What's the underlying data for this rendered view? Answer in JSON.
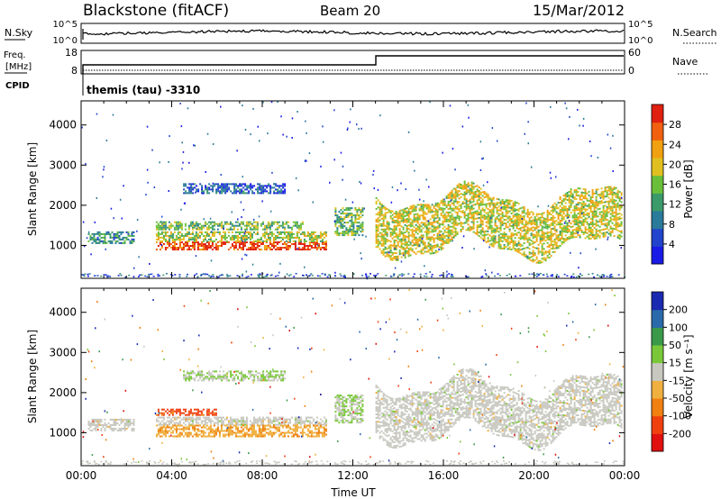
{
  "header": {
    "station": "Blackstone (fitACF)",
    "beam": "Beam 20",
    "date": "15/Mar/2012"
  },
  "strip_noise": {
    "left_label": "N.Sky",
    "right_label": "N.Search",
    "left_ticks": [
      "10^5",
      "10^0"
    ],
    "right_ticks": [
      "10^5",
      "10^0"
    ]
  },
  "strip_freq": {
    "left_label_1": "Freq.",
    "left_label_2": "[MHz]",
    "left_label_3": "CPID",
    "right_label": "Nave",
    "left_ticks": [
      "18",
      "8"
    ],
    "right_ticks": [
      "60",
      "0"
    ],
    "cpid_text": "themis (tau) -3310"
  },
  "chart_data": [
    {
      "type": "heatmap",
      "title": "",
      "xlabel": "Time UT",
      "ylabel": "Slant Range [km]",
      "xlim": [
        0,
        24
      ],
      "ylim": [
        180,
        4600
      ],
      "x_ticks": [
        "00:00",
        "04:00",
        "08:00",
        "12:00",
        "16:00",
        "20:00",
        "00:00"
      ],
      "y_ticks": [
        "1000",
        "2000",
        "3000",
        "4000"
      ],
      "colorbar": {
        "label": "Power [dB]",
        "ticks": [
          "28",
          "24",
          "20",
          "16",
          "12",
          "8",
          "4"
        ],
        "range": [
          0,
          30
        ]
      },
      "echo_bands": [
        {
          "t0": 0.3,
          "t1": 2.3,
          "r0": 1050,
          "r1": 1350,
          "level": 0.35
        },
        {
          "t0": 3.3,
          "t1": 10.8,
          "r0": 900,
          "r1": 1100,
          "level": 0.9
        },
        {
          "t0": 3.3,
          "t1": 10.8,
          "r0": 1100,
          "r1": 1350,
          "level": 0.55
        },
        {
          "t0": 3.3,
          "t1": 9.8,
          "r0": 1400,
          "r1": 1600,
          "level": 0.45
        },
        {
          "t0": 4.5,
          "t1": 9.0,
          "r0": 2300,
          "r1": 2550,
          "level": 0.2
        },
        {
          "t0": 11.2,
          "t1": 12.4,
          "r0": 1250,
          "r1": 1950,
          "level": 0.45
        },
        {
          "t0": 13.0,
          "t1": 23.9,
          "r0": 950,
          "r1": 2200,
          "level": 0.6
        }
      ]
    },
    {
      "type": "heatmap",
      "title": "",
      "xlabel": "Time UT",
      "ylabel": "Slant Range [km]",
      "xlim": [
        0,
        24
      ],
      "ylim": [
        180,
        4600
      ],
      "x_ticks": [
        "00:00",
        "04:00",
        "08:00",
        "12:00",
        "16:00",
        "20:00",
        "00:00"
      ],
      "y_ticks": [
        "1000",
        "2000",
        "3000",
        "4000"
      ],
      "colorbar": {
        "label": "Velocity [m s⁻¹]",
        "ticks": [
          "200",
          "100",
          "50",
          "15",
          "-15",
          "-50",
          "-100",
          "-200"
        ],
        "range": [
          -250,
          250
        ]
      },
      "echo_bands": [
        {
          "t0": 0.3,
          "t1": 2.3,
          "r0": 1050,
          "r1": 1350,
          "velocity": 0
        },
        {
          "t0": 3.3,
          "t1": 6.0,
          "r0": 1450,
          "r1": 1600,
          "velocity": -160
        },
        {
          "t0": 3.3,
          "t1": 10.8,
          "r0": 1200,
          "r1": 1400,
          "velocity": 0
        },
        {
          "t0": 3.3,
          "t1": 10.8,
          "r0": 900,
          "r1": 1200,
          "velocity": -70
        },
        {
          "t0": 4.5,
          "t1": 9.0,
          "r0": 2300,
          "r1": 2550,
          "velocity": 30
        },
        {
          "t0": 11.2,
          "t1": 12.4,
          "r0": 1250,
          "r1": 1950,
          "velocity": 30
        },
        {
          "t0": 13.0,
          "t1": 23.9,
          "r0": 950,
          "r1": 2200,
          "velocity": 0
        }
      ]
    }
  ]
}
